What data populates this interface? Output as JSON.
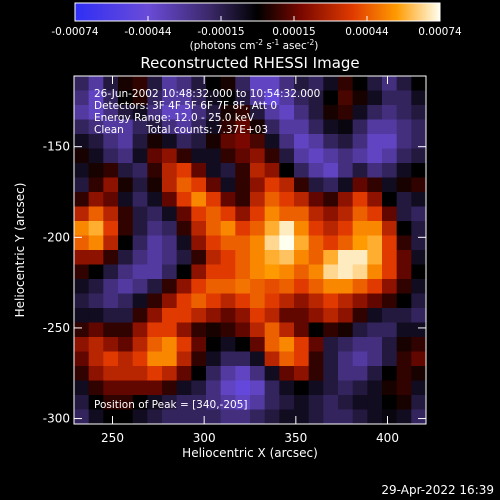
{
  "chart_data": {
    "type": "heatmap",
    "title": "Reconstructed RHESSI Image",
    "xlabel": "Heliocentric X (arcsec)",
    "ylabel": "Heliocentric Y (arcsec)",
    "xlim": [
      229,
      421
    ],
    "ylim": [
      -303,
      -111
    ],
    "xticks": [
      250,
      300,
      350,
      400
    ],
    "yticks": [
      -150,
      -200,
      -250,
      -300
    ],
    "colorbar": {
      "ticks": [
        "-0.00074",
        "-0.00044",
        "-0.00015",
        "0.00015",
        "0.00044",
        "0.00074"
      ],
      "range": [
        -0.00074,
        0.00074
      ],
      "unit_main": "(photons cm",
      "unit_exp1": "-2",
      "unit_mid": " s",
      "unit_exp2": "-1",
      "unit_mid2": " asec",
      "unit_exp3": "-2",
      "unit_end": ")"
    },
    "annotations": {
      "time": "26-Jun-2002 10:48:32.000 to 10:54:32.000",
      "detectors": "Detectors: 3F 4F 5F 6F 7F 8F, Att 0",
      "energy": "Energy Range: 12.0 - 25.0 keV",
      "clean": "Clean",
      "counts": "Total counts: 7.37E+03",
      "peak": "Position of Peak = [340,-205]"
    },
    "peak": [
      340,
      -205
    ],
    "grid_size": 24,
    "values": [
      [
        -0.3,
        -0.5,
        -0.2,
        0.05,
        0.1,
        -0.2,
        -0.5,
        -0.4,
        -0.2,
        0.0,
        0.05,
        -0.3,
        -0.6,
        -0.6,
        -0.4,
        -0.2,
        -0.3,
        -0.1,
        0.1,
        0.0,
        -0.2,
        -0.4,
        -0.2,
        0.0
      ],
      [
        -0.4,
        -0.6,
        -0.3,
        0.0,
        0.08,
        -0.3,
        -0.5,
        -0.5,
        -0.3,
        -0.1,
        0.0,
        -0.2,
        -0.5,
        -0.7,
        -0.5,
        -0.3,
        -0.2,
        0.0,
        0.15,
        0.05,
        -0.1,
        -0.3,
        -0.3,
        -0.1
      ],
      [
        -0.5,
        -0.6,
        -0.4,
        -0.2,
        -0.1,
        -0.4,
        -0.6,
        -0.6,
        -0.4,
        -0.2,
        0.05,
        0.1,
        -0.2,
        -0.5,
        -0.6,
        -0.4,
        -0.2,
        0.05,
        0.1,
        -0.1,
        -0.3,
        -0.4,
        -0.3,
        -0.2
      ],
      [
        -0.3,
        -0.4,
        -0.5,
        -0.5,
        -0.3,
        -0.2,
        -0.4,
        -0.5,
        -0.3,
        -0.1,
        0.1,
        0.2,
        0.05,
        -0.3,
        -0.5,
        -0.5,
        -0.3,
        -0.1,
        -0.05,
        -0.3,
        -0.5,
        -0.5,
        -0.4,
        -0.3
      ],
      [
        -0.1,
        -0.2,
        -0.4,
        -0.5,
        -0.2,
        0.05,
        -0.1,
        -0.3,
        -0.2,
        0.05,
        0.2,
        0.25,
        0.15,
        -0.1,
        -0.4,
        -0.6,
        -0.5,
        -0.3,
        -0.2,
        -0.4,
        -0.6,
        -0.6,
        -0.4,
        -0.3
      ],
      [
        0.05,
        -0.1,
        -0.3,
        -0.4,
        -0.1,
        0.2,
        0.3,
        0.1,
        -0.1,
        -0.1,
        0.1,
        0.2,
        0.3,
        0.1,
        -0.2,
        -0.5,
        -0.6,
        -0.5,
        -0.4,
        -0.5,
        -0.6,
        -0.5,
        -0.3,
        -0.2
      ],
      [
        -0.1,
        0.05,
        0.1,
        -0.2,
        -0.3,
        0.1,
        0.4,
        0.5,
        0.2,
        -0.1,
        -0.2,
        0.1,
        0.4,
        0.3,
        0.0,
        -0.3,
        -0.5,
        -0.6,
        -0.4,
        -0.2,
        -0.4,
        -0.3,
        -0.1,
        0.0
      ],
      [
        -0.2,
        0.1,
        0.3,
        0.05,
        -0.2,
        0.05,
        0.4,
        0.6,
        0.5,
        0.2,
        -0.1,
        0.1,
        0.3,
        0.5,
        0.4,
        0.1,
        -0.2,
        -0.3,
        -0.1,
        0.2,
        0.1,
        -0.1,
        0.05,
        0.1
      ],
      [
        0.1,
        0.3,
        0.2,
        -0.1,
        -0.3,
        -0.1,
        0.2,
        0.5,
        0.7,
        0.5,
        0.2,
        0.1,
        0.4,
        0.6,
        0.5,
        0.4,
        0.2,
        0.1,
        0.3,
        0.5,
        0.3,
        0.0,
        -0.2,
        -0.1
      ],
      [
        0.4,
        0.6,
        0.4,
        0.1,
        -0.2,
        -0.3,
        -0.1,
        0.2,
        0.5,
        0.6,
        0.5,
        0.3,
        0.5,
        0.7,
        0.6,
        0.6,
        0.4,
        0.3,
        0.4,
        0.6,
        0.5,
        0.2,
        -0.2,
        -0.3
      ],
      [
        0.7,
        0.8,
        0.5,
        0.1,
        -0.2,
        -0.4,
        -0.3,
        0.1,
        0.4,
        0.6,
        0.7,
        0.5,
        0.6,
        0.8,
        0.95,
        0.7,
        0.5,
        0.4,
        0.5,
        0.7,
        0.7,
        0.4,
        0.0,
        -0.2
      ],
      [
        0.6,
        0.7,
        0.4,
        0.0,
        -0.3,
        -0.5,
        -0.4,
        -0.1,
        0.3,
        0.5,
        0.6,
        0.6,
        0.7,
        0.9,
        1.0,
        0.8,
        0.6,
        0.5,
        0.6,
        0.75,
        0.8,
        0.5,
        0.1,
        -0.2
      ],
      [
        0.3,
        0.3,
        0.1,
        -0.2,
        -0.4,
        -0.5,
        -0.4,
        -0.2,
        0.1,
        0.4,
        0.5,
        0.6,
        0.7,
        0.8,
        0.85,
        0.7,
        0.6,
        0.8,
        0.95,
        0.95,
        0.8,
        0.5,
        0.2,
        -0.1
      ],
      [
        0.1,
        0.0,
        -0.2,
        -0.4,
        -0.5,
        -0.5,
        -0.3,
        0.0,
        0.3,
        0.5,
        0.5,
        0.6,
        0.7,
        0.75,
        0.7,
        0.6,
        0.7,
        0.9,
        0.95,
        0.9,
        0.7,
        0.5,
        0.2,
        0.0
      ],
      [
        -0.1,
        -0.2,
        -0.4,
        -0.5,
        -0.4,
        -0.2,
        0.1,
        0.3,
        0.5,
        0.6,
        0.6,
        0.65,
        0.6,
        0.55,
        0.6,
        0.5,
        0.6,
        0.7,
        0.7,
        0.6,
        0.5,
        0.3,
        0.1,
        -0.1
      ],
      [
        -0.2,
        -0.3,
        -0.4,
        -0.3,
        -0.1,
        0.1,
        0.3,
        0.5,
        0.6,
        0.5,
        0.4,
        0.5,
        0.6,
        0.5,
        0.4,
        0.3,
        0.4,
        0.5,
        0.4,
        0.3,
        0.2,
        0.1,
        0.0,
        -0.2
      ],
      [
        -0.1,
        -0.1,
        -0.2,
        -0.2,
        0.1,
        0.3,
        0.5,
        0.5,
        0.4,
        0.3,
        0.2,
        0.3,
        0.5,
        0.4,
        0.2,
        0.2,
        0.3,
        0.4,
        0.3,
        0.1,
        -0.1,
        -0.2,
        -0.2,
        -0.3
      ],
      [
        0.1,
        0.2,
        0.1,
        0.1,
        0.3,
        0.5,
        0.5,
        0.3,
        0.1,
        0.05,
        0.1,
        0.2,
        0.4,
        0.6,
        0.4,
        0.2,
        0.0,
        0.1,
        0.05,
        -0.2,
        -0.3,
        -0.3,
        -0.1,
        -0.1
      ],
      [
        0.3,
        0.4,
        0.3,
        0.2,
        0.4,
        0.6,
        0.7,
        0.5,
        0.2,
        0.0,
        -0.1,
        0.0,
        0.2,
        0.6,
        0.7,
        0.5,
        0.2,
        -0.2,
        -0.3,
        -0.4,
        -0.4,
        -0.2,
        0.05,
        0.1
      ],
      [
        0.2,
        0.4,
        0.5,
        0.4,
        0.5,
        0.7,
        0.7,
        0.4,
        0.1,
        -0.1,
        -0.3,
        -0.3,
        -0.1,
        0.4,
        0.6,
        0.5,
        0.1,
        -0.2,
        -0.4,
        -0.5,
        -0.4,
        -0.2,
        0.1,
        0.2
      ],
      [
        0.1,
        0.3,
        0.4,
        0.4,
        0.4,
        0.5,
        0.4,
        0.2,
        0.0,
        -0.3,
        -0.5,
        -0.6,
        -0.4,
        -0.1,
        0.2,
        0.3,
        0.1,
        -0.2,
        -0.4,
        -0.4,
        -0.2,
        0.0,
        0.1,
        0.05
      ],
      [
        -0.1,
        0.1,
        0.2,
        0.2,
        0.2,
        0.2,
        0.1,
        -0.1,
        -0.2,
        -0.4,
        -0.6,
        -0.7,
        -0.6,
        -0.3,
        -0.1,
        0.0,
        -0.1,
        -0.2,
        -0.3,
        -0.2,
        -0.1,
        0.05,
        0.1,
        -0.1
      ],
      [
        -0.2,
        0.0,
        0.1,
        0.1,
        0.0,
        -0.1,
        -0.2,
        -0.3,
        -0.3,
        -0.4,
        -0.5,
        -0.6,
        -0.5,
        -0.3,
        -0.2,
        -0.1,
        -0.2,
        -0.3,
        -0.2,
        -0.1,
        -0.1,
        0.0,
        0.05,
        -0.2
      ],
      [
        -0.3,
        -0.1,
        0.0,
        0.0,
        -0.1,
        -0.2,
        -0.3,
        -0.3,
        -0.3,
        -0.3,
        -0.4,
        -0.4,
        -0.3,
        -0.2,
        -0.1,
        -0.1,
        -0.2,
        -0.3,
        -0.3,
        -0.2,
        -0.1,
        -0.05,
        -0.1,
        -0.3
      ]
    ]
  },
  "footer": {
    "timestamp": "29-Apr-2022 16:39"
  }
}
